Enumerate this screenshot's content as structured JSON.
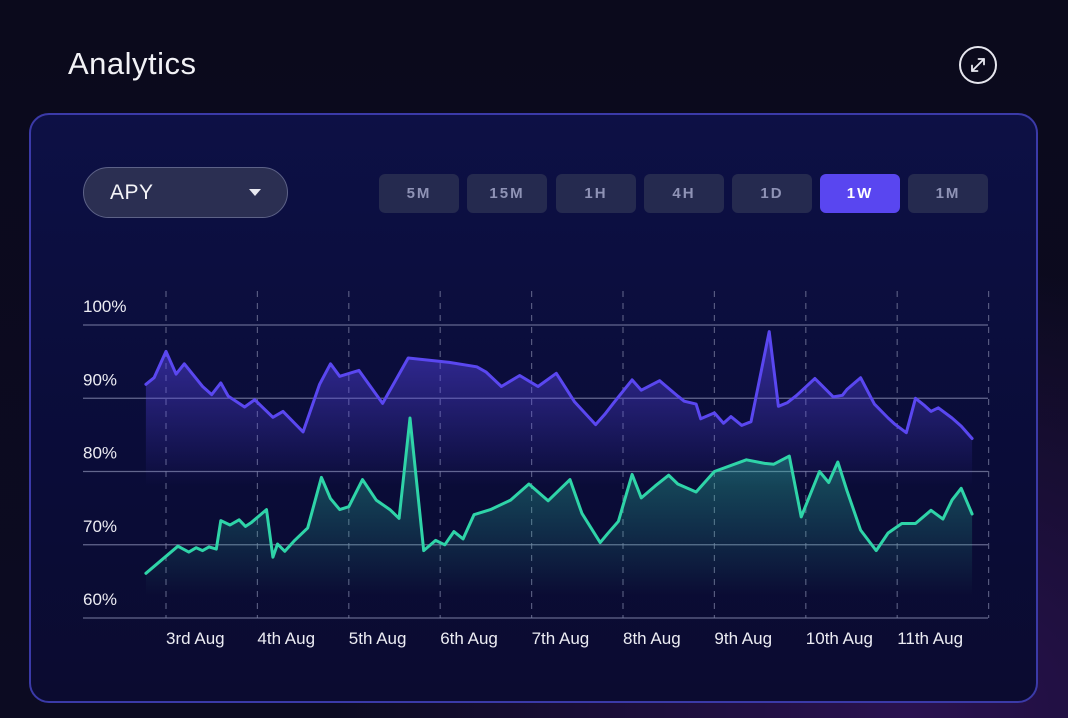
{
  "header": {
    "title": "Analytics"
  },
  "icons": {
    "expand": "expand-arrows-icon",
    "caret": "caret-down-icon"
  },
  "metric_select": {
    "value": "APY"
  },
  "timeframes": [
    {
      "label": "5M",
      "active": false
    },
    {
      "label": "15M",
      "active": false
    },
    {
      "label": "1H",
      "active": false
    },
    {
      "label": "4H",
      "active": false
    },
    {
      "label": "1D",
      "active": false
    },
    {
      "label": "1W",
      "active": true
    },
    {
      "label": "1M",
      "active": false
    }
  ],
  "colors": {
    "series_purple": "#5a47f0",
    "series_green": "#2fd4a8",
    "active_button": "#5946f0",
    "panel_border": "#3b3aa8"
  },
  "chart_data": {
    "type": "area",
    "x_ticks": [
      "3rd Aug",
      "4th Aug",
      "5th Aug",
      "6th Aug",
      "7th Aug",
      "8th Aug",
      "9th Aug",
      "10th Aug",
      "11th Aug"
    ],
    "y_ticks": [
      "100%",
      "90%",
      "80%",
      "70%",
      "60%"
    ],
    "ylim": [
      60,
      100
    ],
    "xlim": [
      -0.22,
      8.82
    ],
    "grid": {
      "horizontal": true,
      "vertical_dashed": true
    },
    "series": [
      {
        "color": "#5a47f0",
        "x": [
          -0.22,
          -0.13,
          0.0,
          0.11,
          0.2,
          0.4,
          0.5,
          0.6,
          0.68,
          0.86,
          0.97,
          1.17,
          1.28,
          1.5,
          1.68,
          1.8,
          1.9,
          2.11,
          2.37,
          2.65,
          3.1,
          3.4,
          3.5,
          3.67,
          3.87,
          4.07,
          4.27,
          4.47,
          4.7,
          4.8,
          4.9,
          5.1,
          5.2,
          5.4,
          5.6,
          5.67,
          5.8,
          5.85,
          6.0,
          6.1,
          6.18,
          6.3,
          6.4,
          6.6,
          6.7,
          6.8,
          6.9,
          7.1,
          7.3,
          7.4,
          7.45,
          7.6,
          7.75,
          7.9,
          7.97,
          8.1,
          8.2,
          8.3,
          8.37,
          8.45,
          8.6,
          8.7,
          8.82
        ],
        "y": [
          91.9,
          92.8,
          96.4,
          93.3,
          94.7,
          91.6,
          90.5,
          92.1,
          90.3,
          88.8,
          89.8,
          87.4,
          88.2,
          85.4,
          91.9,
          94.7,
          93.0,
          93.8,
          89.3,
          95.5,
          94.9,
          94.3,
          93.6,
          91.6,
          93.1,
          91.6,
          93.4,
          89.5,
          86.4,
          87.8,
          89.4,
          92.5,
          91.1,
          92.4,
          90.3,
          89.6,
          89.2,
          87.2,
          88.0,
          86.6,
          87.5,
          86.3,
          86.8,
          99.1,
          88.9,
          89.4,
          90.4,
          92.7,
          90.2,
          90.4,
          91.2,
          92.8,
          89.2,
          87.3,
          86.5,
          85.3,
          90.0,
          89.0,
          88.2,
          88.7,
          87.3,
          86.2,
          84.5
        ]
      },
      {
        "color": "#2fd4a8",
        "x": [
          -0.22,
          0.13,
          0.25,
          0.33,
          0.4,
          0.47,
          0.55,
          0.6,
          0.7,
          0.8,
          0.87,
          0.93,
          1.1,
          1.17,
          1.22,
          1.3,
          1.4,
          1.55,
          1.7,
          1.8,
          1.9,
          2.0,
          2.15,
          2.3,
          2.45,
          2.55,
          2.67,
          2.82,
          2.95,
          3.05,
          3.15,
          3.25,
          3.37,
          3.55,
          3.77,
          3.97,
          4.18,
          4.42,
          4.55,
          4.75,
          4.83,
          4.95,
          5.1,
          5.2,
          5.35,
          5.5,
          5.6,
          5.8,
          6.0,
          6.35,
          6.55,
          6.65,
          6.82,
          6.95,
          7.15,
          7.25,
          7.35,
          7.45,
          7.6,
          7.77,
          7.9,
          8.05,
          8.2,
          8.37,
          8.5,
          8.6,
          8.7,
          8.82
        ],
        "y": [
          66.1,
          69.8,
          69.0,
          69.6,
          69.2,
          69.7,
          69.4,
          73.3,
          72.7,
          73.4,
          72.5,
          73.0,
          74.8,
          68.3,
          70.1,
          69.1,
          70.5,
          72.3,
          79.2,
          76.3,
          74.8,
          75.2,
          78.9,
          76.1,
          74.8,
          73.6,
          87.3,
          69.2,
          70.6,
          70.0,
          71.8,
          70.8,
          74.1,
          74.8,
          76.1,
          78.3,
          76.0,
          78.9,
          74.3,
          70.3,
          71.5,
          73.2,
          79.6,
          76.4,
          78.0,
          79.5,
          78.3,
          77.2,
          80.0,
          81.6,
          81.1,
          81.0,
          82.1,
          73.8,
          80.0,
          78.5,
          81.3,
          77.4,
          72.0,
          69.2,
          71.6,
          72.9,
          72.9,
          74.7,
          73.5,
          76.1,
          77.7,
          74.2
        ]
      }
    ]
  }
}
